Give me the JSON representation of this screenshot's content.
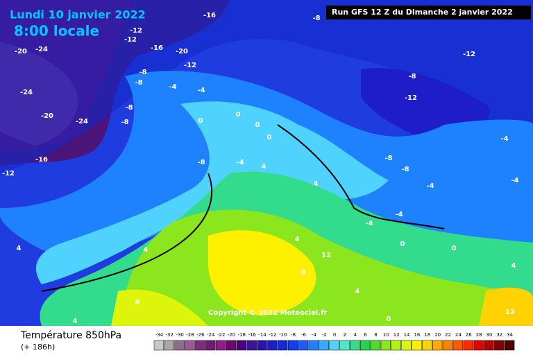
{
  "header": {
    "title": "Lundi 10 janvier 2022",
    "time": "8:00 locale",
    "run": "Run GFS 12 Z du Dimanche 2 janvier 2022",
    "copyright": "Copyright © 2022 Meteociel.fr"
  },
  "footer": {
    "title": "Température 850hPa",
    "lead": "(+ 186h)"
  },
  "legend": {
    "ticks": [
      -34,
      -32,
      -30,
      -28,
      -26,
      -24,
      -22,
      -20,
      -18,
      -16,
      -14,
      -12,
      -10,
      -8,
      -6,
      -4,
      -2,
      0,
      2,
      4,
      6,
      8,
      10,
      12,
      14,
      16,
      18,
      20,
      22,
      24,
      26,
      28,
      30,
      32,
      34
    ],
    "colors": [
      "#c8c8c8",
      "#a8a8a8",
      "#8c6e8c",
      "#9a5a9a",
      "#7d2d7d",
      "#6e1c6e",
      "#8c1c8c",
      "#6a0a6a",
      "#4b0082",
      "#3c1496",
      "#2814b4",
      "#1e1ec8",
      "#1428dc",
      "#143cf0",
      "#1e5aff",
      "#1e82ff",
      "#32aaff",
      "#50d2ff",
      "#50e6c8",
      "#32dc8c",
      "#28d250",
      "#50dc28",
      "#8ce61e",
      "#b4f014",
      "#dcf50a",
      "#fff000",
      "#ffd200",
      "#ffaa00",
      "#ff8200",
      "#ff5a00",
      "#ff2800",
      "#e60000",
      "#b40000",
      "#820000",
      "#500000"
    ]
  },
  "map_labels": [
    -16,
    -8,
    -12,
    -12,
    -16,
    -20,
    -12,
    -12,
    -8,
    -8,
    -4,
    -4,
    -8,
    -12,
    -8,
    -8,
    0,
    0,
    0,
    0,
    -8,
    -4,
    4,
    4,
    -12,
    -16,
    -20,
    -24,
    -24,
    -20,
    -24,
    -8,
    -4,
    -4,
    -4,
    4,
    4,
    4,
    12,
    8,
    4,
    0,
    0,
    4,
    8,
    0,
    -8,
    -4,
    -4,
    4,
    12
  ]
}
